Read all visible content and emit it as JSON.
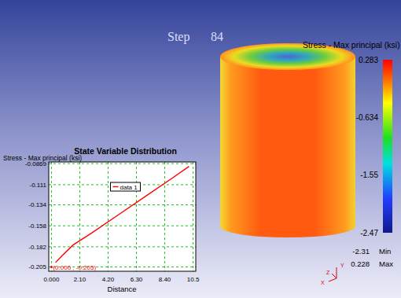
{
  "chart_data": {
    "type": "line",
    "title": "State Variable Distribution",
    "y_label": "Stress - Max principal (ksi)",
    "x_label": "Distance",
    "x": [
      0.3,
      0.8,
      1.6,
      3.0,
      5.0,
      7.0,
      9.0,
      10.2
    ],
    "series": [
      {
        "name": "data 1",
        "color": "#ff0000",
        "values": [
          -0.2,
          -0.192,
          -0.18,
          -0.166,
          -0.145,
          -0.124,
          -0.103,
          -0.09
        ]
      }
    ],
    "xlim": [
      -0.2,
      10.7
    ],
    "ylim": [
      -0.21,
      -0.085
    ],
    "xticks": [
      {
        "value": 0,
        "label": "0.000"
      },
      {
        "value": 2.1,
        "label": "2.10"
      },
      {
        "value": 4.2,
        "label": "4.20"
      },
      {
        "value": 6.3,
        "label": "6.30"
      },
      {
        "value": 8.4,
        "label": "8.40"
      },
      10.5
    ],
    "yticks": [
      -0.0869,
      -0.111,
      -0.134,
      -0.158,
      -0.182,
      -0.205
    ],
    "grid": true,
    "legend": "top",
    "annotations": [
      {
        "x": 0,
        "y": -0.205,
        "text": "(0.000 , -0.205)"
      }
    ]
  },
  "scene": {
    "step_label": "Step",
    "step": 84,
    "colorbar": {
      "title": "Stress - Max principal (ksi)",
      "range": [
        -2.47,
        0.283
      ],
      "ticks": [
        0.283,
        -0.634,
        -1.55,
        -2.47
      ],
      "min": -2.31,
      "min_label": "Min",
      "max": 0.228,
      "max_label": "Max"
    },
    "triad": {
      "x": "X",
      "y": "Y",
      "z": "Z"
    }
  }
}
